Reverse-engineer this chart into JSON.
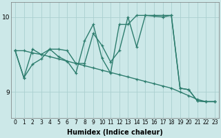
{
  "xlabel": "Humidex (Indice chaleur)",
  "bg_color": "#cce8e8",
  "line_color": "#2d7d6e",
  "grid_color": "#aacfcf",
  "xlim": [
    -0.5,
    23.5
  ],
  "ylim": [
    8.65,
    10.2
  ],
  "xticks": [
    0,
    1,
    2,
    3,
    4,
    5,
    6,
    7,
    8,
    9,
    10,
    11,
    12,
    13,
    14,
    15,
    16,
    17,
    18,
    19,
    20,
    21,
    22,
    23
  ],
  "yticks": [
    9,
    10
  ],
  "line1": [
    9.55,
    9.19,
    9.57,
    9.5,
    9.57,
    9.57,
    9.55,
    9.38,
    9.38,
    9.78,
    9.62,
    9.4,
    9.55,
    10.0,
    9.6,
    10.02,
    10.01,
    10.0,
    10.02,
    9.05,
    9.03,
    8.88,
    8.87,
    8.87
  ],
  "line2": [
    9.55,
    9.19,
    9.37,
    9.44,
    9.57,
    9.47,
    9.41,
    9.25,
    9.68,
    9.9,
    9.45,
    9.25,
    9.9,
    9.9,
    10.02,
    10.02,
    10.02,
    10.02,
    10.02,
    9.05,
    9.03,
    8.88,
    8.87,
    8.87
  ],
  "line3": [
    9.55,
    9.55,
    9.52,
    9.5,
    9.47,
    9.44,
    9.41,
    9.38,
    9.35,
    9.32,
    9.29,
    9.26,
    9.23,
    9.2,
    9.17,
    9.14,
    9.11,
    9.08,
    9.05,
    9.0,
    8.95,
    8.9,
    8.87,
    8.87
  ],
  "marker": "+",
  "markersize": 3,
  "linewidth": 1.0,
  "tick_fontsize": 5.5,
  "xlabel_fontsize": 7
}
